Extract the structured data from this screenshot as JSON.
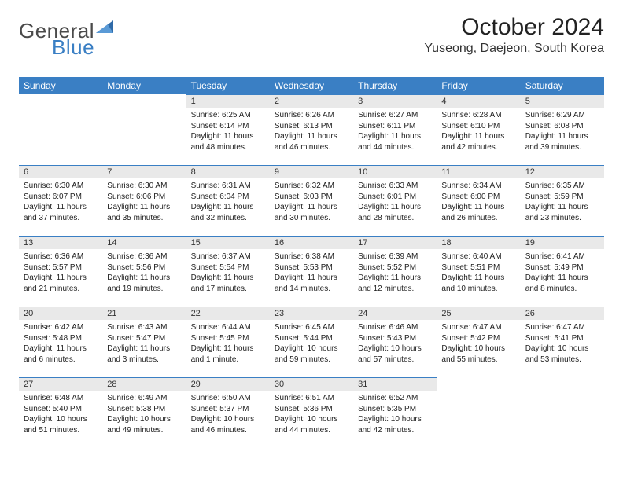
{
  "brand": {
    "word1": "General",
    "word2": "Blue",
    "text_color": "#4a4a4a",
    "accent_color": "#3a7fc4"
  },
  "title": {
    "month": "October 2024",
    "location": "Yuseong, Daejeon, South Korea"
  },
  "calendar": {
    "header_bg": "#3a7fc4",
    "header_fg": "#ffffff",
    "daynum_bg": "#e9e9e9",
    "row_border": "#3a7fc4",
    "columns": [
      "Sunday",
      "Monday",
      "Tuesday",
      "Wednesday",
      "Thursday",
      "Friday",
      "Saturday"
    ],
    "cell_font_size": 10,
    "header_font_size": 12,
    "weeks": [
      [
        {
          "empty": true
        },
        {
          "empty": true
        },
        {
          "day": "1",
          "sunrise": "Sunrise: 6:25 AM",
          "sunset": "Sunset: 6:14 PM",
          "daylight": "Daylight: 11 hours and 48 minutes."
        },
        {
          "day": "2",
          "sunrise": "Sunrise: 6:26 AM",
          "sunset": "Sunset: 6:13 PM",
          "daylight": "Daylight: 11 hours and 46 minutes."
        },
        {
          "day": "3",
          "sunrise": "Sunrise: 6:27 AM",
          "sunset": "Sunset: 6:11 PM",
          "daylight": "Daylight: 11 hours and 44 minutes."
        },
        {
          "day": "4",
          "sunrise": "Sunrise: 6:28 AM",
          "sunset": "Sunset: 6:10 PM",
          "daylight": "Daylight: 11 hours and 42 minutes."
        },
        {
          "day": "5",
          "sunrise": "Sunrise: 6:29 AM",
          "sunset": "Sunset: 6:08 PM",
          "daylight": "Daylight: 11 hours and 39 minutes."
        }
      ],
      [
        {
          "day": "6",
          "sunrise": "Sunrise: 6:30 AM",
          "sunset": "Sunset: 6:07 PM",
          "daylight": "Daylight: 11 hours and 37 minutes."
        },
        {
          "day": "7",
          "sunrise": "Sunrise: 6:30 AM",
          "sunset": "Sunset: 6:06 PM",
          "daylight": "Daylight: 11 hours and 35 minutes."
        },
        {
          "day": "8",
          "sunrise": "Sunrise: 6:31 AM",
          "sunset": "Sunset: 6:04 PM",
          "daylight": "Daylight: 11 hours and 32 minutes."
        },
        {
          "day": "9",
          "sunrise": "Sunrise: 6:32 AM",
          "sunset": "Sunset: 6:03 PM",
          "daylight": "Daylight: 11 hours and 30 minutes."
        },
        {
          "day": "10",
          "sunrise": "Sunrise: 6:33 AM",
          "sunset": "Sunset: 6:01 PM",
          "daylight": "Daylight: 11 hours and 28 minutes."
        },
        {
          "day": "11",
          "sunrise": "Sunrise: 6:34 AM",
          "sunset": "Sunset: 6:00 PM",
          "daylight": "Daylight: 11 hours and 26 minutes."
        },
        {
          "day": "12",
          "sunrise": "Sunrise: 6:35 AM",
          "sunset": "Sunset: 5:59 PM",
          "daylight": "Daylight: 11 hours and 23 minutes."
        }
      ],
      [
        {
          "day": "13",
          "sunrise": "Sunrise: 6:36 AM",
          "sunset": "Sunset: 5:57 PM",
          "daylight": "Daylight: 11 hours and 21 minutes."
        },
        {
          "day": "14",
          "sunrise": "Sunrise: 6:36 AM",
          "sunset": "Sunset: 5:56 PM",
          "daylight": "Daylight: 11 hours and 19 minutes."
        },
        {
          "day": "15",
          "sunrise": "Sunrise: 6:37 AM",
          "sunset": "Sunset: 5:54 PM",
          "daylight": "Daylight: 11 hours and 17 minutes."
        },
        {
          "day": "16",
          "sunrise": "Sunrise: 6:38 AM",
          "sunset": "Sunset: 5:53 PM",
          "daylight": "Daylight: 11 hours and 14 minutes."
        },
        {
          "day": "17",
          "sunrise": "Sunrise: 6:39 AM",
          "sunset": "Sunset: 5:52 PM",
          "daylight": "Daylight: 11 hours and 12 minutes."
        },
        {
          "day": "18",
          "sunrise": "Sunrise: 6:40 AM",
          "sunset": "Sunset: 5:51 PM",
          "daylight": "Daylight: 11 hours and 10 minutes."
        },
        {
          "day": "19",
          "sunrise": "Sunrise: 6:41 AM",
          "sunset": "Sunset: 5:49 PM",
          "daylight": "Daylight: 11 hours and 8 minutes."
        }
      ],
      [
        {
          "day": "20",
          "sunrise": "Sunrise: 6:42 AM",
          "sunset": "Sunset: 5:48 PM",
          "daylight": "Daylight: 11 hours and 6 minutes."
        },
        {
          "day": "21",
          "sunrise": "Sunrise: 6:43 AM",
          "sunset": "Sunset: 5:47 PM",
          "daylight": "Daylight: 11 hours and 3 minutes."
        },
        {
          "day": "22",
          "sunrise": "Sunrise: 6:44 AM",
          "sunset": "Sunset: 5:45 PM",
          "daylight": "Daylight: 11 hours and 1 minute."
        },
        {
          "day": "23",
          "sunrise": "Sunrise: 6:45 AM",
          "sunset": "Sunset: 5:44 PM",
          "daylight": "Daylight: 10 hours and 59 minutes."
        },
        {
          "day": "24",
          "sunrise": "Sunrise: 6:46 AM",
          "sunset": "Sunset: 5:43 PM",
          "daylight": "Daylight: 10 hours and 57 minutes."
        },
        {
          "day": "25",
          "sunrise": "Sunrise: 6:47 AM",
          "sunset": "Sunset: 5:42 PM",
          "daylight": "Daylight: 10 hours and 55 minutes."
        },
        {
          "day": "26",
          "sunrise": "Sunrise: 6:47 AM",
          "sunset": "Sunset: 5:41 PM",
          "daylight": "Daylight: 10 hours and 53 minutes."
        }
      ],
      [
        {
          "day": "27",
          "sunrise": "Sunrise: 6:48 AM",
          "sunset": "Sunset: 5:40 PM",
          "daylight": "Daylight: 10 hours and 51 minutes."
        },
        {
          "day": "28",
          "sunrise": "Sunrise: 6:49 AM",
          "sunset": "Sunset: 5:38 PM",
          "daylight": "Daylight: 10 hours and 49 minutes."
        },
        {
          "day": "29",
          "sunrise": "Sunrise: 6:50 AM",
          "sunset": "Sunset: 5:37 PM",
          "daylight": "Daylight: 10 hours and 46 minutes."
        },
        {
          "day": "30",
          "sunrise": "Sunrise: 6:51 AM",
          "sunset": "Sunset: 5:36 PM",
          "daylight": "Daylight: 10 hours and 44 minutes."
        },
        {
          "day": "31",
          "sunrise": "Sunrise: 6:52 AM",
          "sunset": "Sunset: 5:35 PM",
          "daylight": "Daylight: 10 hours and 42 minutes."
        },
        {
          "empty": true
        },
        {
          "empty": true
        }
      ]
    ]
  }
}
